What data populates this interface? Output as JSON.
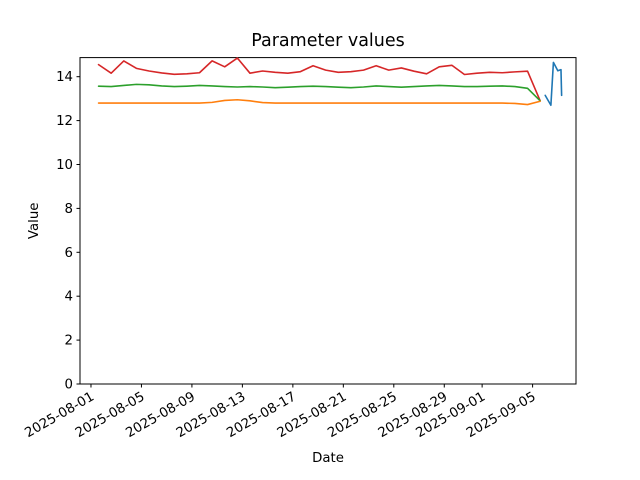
{
  "figure": {
    "background": "#ffffff",
    "spine_color": "#000000"
  },
  "chart_data": {
    "type": "line",
    "title": "Parameter values",
    "xlabel": "Date",
    "ylabel": "Value",
    "grid": false,
    "legend": "none",
    "x_unit": "days since 2025-08-01",
    "xlim": [
      -0.87,
      38.44
    ],
    "ylim": [
      0,
      14.87
    ],
    "y_ticks": [
      0,
      2,
      4,
      6,
      8,
      10,
      12,
      14
    ],
    "x_ticks": [
      {
        "day": 0,
        "label": "2025-08-01"
      },
      {
        "day": 4,
        "label": "2025-08-05"
      },
      {
        "day": 8,
        "label": "2025-08-09"
      },
      {
        "day": 12,
        "label": "2025-08-13"
      },
      {
        "day": 16,
        "label": "2025-08-17"
      },
      {
        "day": 20,
        "label": "2025-08-21"
      },
      {
        "day": 24,
        "label": "2025-08-25"
      },
      {
        "day": 28,
        "label": "2025-08-29"
      },
      {
        "day": 31,
        "label": "2025-09-01"
      },
      {
        "day": 35,
        "label": "2025-09-05"
      }
    ],
    "series": [
      {
        "name": "red-series",
        "color": "#d62728",
        "x_start": 0.6,
        "x_step": 1.0,
        "values": [
          14.55,
          14.16,
          14.72,
          14.38,
          14.26,
          14.17,
          14.11,
          14.13,
          14.18,
          14.72,
          14.45,
          14.85,
          14.16,
          14.26,
          14.2,
          14.16,
          14.23,
          14.5,
          14.3,
          14.2,
          14.23,
          14.3,
          14.5,
          14.3,
          14.4,
          14.25,
          14.13,
          14.45,
          14.52,
          14.1,
          14.16,
          14.2,
          14.18,
          14.22,
          14.25,
          12.9
        ]
      },
      {
        "name": "green-series",
        "color": "#2ca02c",
        "x_start": 0.6,
        "x_step": 1.0,
        "values": [
          13.57,
          13.55,
          13.6,
          13.65,
          13.63,
          13.58,
          13.55,
          13.57,
          13.6,
          13.58,
          13.55,
          13.53,
          13.55,
          13.53,
          13.5,
          13.52,
          13.55,
          13.57,
          13.55,
          13.52,
          13.5,
          13.53,
          13.58,
          13.55,
          13.52,
          13.55,
          13.58,
          13.6,
          13.58,
          13.55,
          13.55,
          13.57,
          13.58,
          13.55,
          13.47,
          12.9
        ]
      },
      {
        "name": "orange-series",
        "color": "#ff7f0e",
        "x_start": 0.6,
        "x_step": 1.0,
        "values": [
          12.8,
          12.8,
          12.8,
          12.8,
          12.8,
          12.8,
          12.8,
          12.8,
          12.8,
          12.83,
          12.92,
          12.95,
          12.9,
          12.82,
          12.8,
          12.8,
          12.8,
          12.8,
          12.8,
          12.8,
          12.8,
          12.8,
          12.8,
          12.8,
          12.8,
          12.8,
          12.8,
          12.8,
          12.8,
          12.8,
          12.8,
          12.8,
          12.8,
          12.78,
          12.73,
          12.88
        ]
      },
      {
        "name": "blue-series",
        "color": "#1f77b4",
        "x": [
          36.0,
          36.45,
          36.65,
          37.0,
          37.25,
          37.3
        ],
        "values": [
          13.15,
          12.7,
          14.65,
          14.27,
          14.32,
          13.15
        ]
      }
    ]
  }
}
